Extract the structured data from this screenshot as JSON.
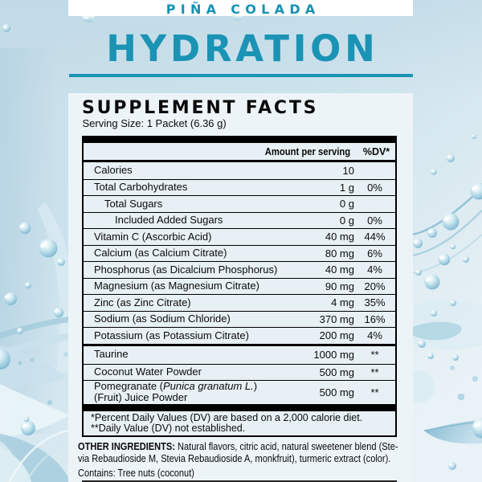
{
  "header": {
    "flavor": "PIÑA COLADA",
    "product": "HYDRATION"
  },
  "panel": {
    "title": "SUPPLEMENT FACTS",
    "serving_size": "Serving Size: 1 Packet (6.36 g)",
    "table": {
      "columns": {
        "amount": "Amount per serving",
        "dv": "%DV*"
      },
      "rows": [
        {
          "indent": 0,
          "lines": [
            [
              {
                "t": "Calories",
                "i": 0
              }
            ]
          ],
          "amount": "10",
          "dv": ""
        },
        {
          "indent": 0,
          "lines": [
            [
              {
                "t": "Total Carbohydrates",
                "i": 0
              }
            ]
          ],
          "amount": "1 g",
          "dv": "0%"
        },
        {
          "indent": 1,
          "lines": [
            [
              {
                "t": "Total Sugars",
                "i": 0
              }
            ]
          ],
          "amount": "0 g",
          "dv": ""
        },
        {
          "indent": 2,
          "lines": [
            [
              {
                "t": "Included Added Sugars",
                "i": 0
              }
            ]
          ],
          "amount": "0 g",
          "dv": "0%"
        },
        {
          "indent": 0,
          "lines": [
            [
              {
                "t": "Vitamin C (Ascorbic Acid)",
                "i": 0
              }
            ]
          ],
          "amount": "40 mg",
          "dv": "44%"
        },
        {
          "indent": 0,
          "lines": [
            [
              {
                "t": "Calcium (as Calcium Citrate)",
                "i": 0
              }
            ]
          ],
          "amount": "80 mg",
          "dv": "6%"
        },
        {
          "indent": 0,
          "lines": [
            [
              {
                "t": "Phosphorus (as Dicalcium Phosphorus)",
                "i": 0
              }
            ]
          ],
          "amount": "40 mg",
          "dv": "4%"
        },
        {
          "indent": 0,
          "lines": [
            [
              {
                "t": "Magnesium (as Magnesium Citrate)",
                "i": 0
              }
            ]
          ],
          "amount": "90 mg",
          "dv": "20%"
        },
        {
          "indent": 0,
          "lines": [
            [
              {
                "t": "Zinc (as Zinc Citrate)",
                "i": 0
              }
            ]
          ],
          "amount": "4 mg",
          "dv": "35%"
        },
        {
          "indent": 0,
          "lines": [
            [
              {
                "t": "Sodium (as Sodium Chloride)",
                "i": 0
              }
            ]
          ],
          "amount": "370 mg",
          "dv": "16%"
        },
        {
          "indent": 0,
          "lines": [
            [
              {
                "t": "Potassium (as Potassium Citrate)",
                "i": 0
              }
            ]
          ],
          "amount": "200 mg",
          "dv": "4%"
        },
        {
          "indent": 0,
          "thick": true,
          "tall": true,
          "lines": [
            [
              {
                "t": "Taurine",
                "i": 0
              }
            ]
          ],
          "amount": "1000 mg",
          "dv": "**"
        },
        {
          "indent": 0,
          "lines": [
            [
              {
                "t": "Coconut Water Powder",
                "i": 0
              }
            ]
          ],
          "amount": "500 mg",
          "dv": "**"
        },
        {
          "indent": 0,
          "twoline": true,
          "lines": [
            [
              {
                "t": "Pomegranate (",
                "i": 0
              },
              {
                "t": "Punica granatum L.",
                "i": 1
              },
              {
                "t": ")",
                "i": 0
              }
            ],
            [
              {
                "t": "(Fruit) Juice Powder",
                "i": 0
              }
            ]
          ],
          "amount": "500 mg",
          "dv": "**"
        }
      ],
      "footnotes": [
        "*Percent Daily Values (DV) are based on a 2,000 calorie diet.",
        "**Daily Value (DV) not established."
      ]
    },
    "other_ingredients": {
      "label": "OTHER INGREDIENTS:",
      "lines": [
        " Natural flavors, citric acid, natural sweetener blend (Ste-",
        "via Rebaudioside M, Stevia Rebaudioside A, monkfruit), turmeric extract (color)."
      ],
      "contains": "Contains: Tree nuts (coconut)"
    }
  },
  "colors": {
    "teal": "#1a93b5",
    "panel": "#edf4f7",
    "background": "#cfe4ed",
    "black": "#000000",
    "white_band": "#ffffff"
  }
}
